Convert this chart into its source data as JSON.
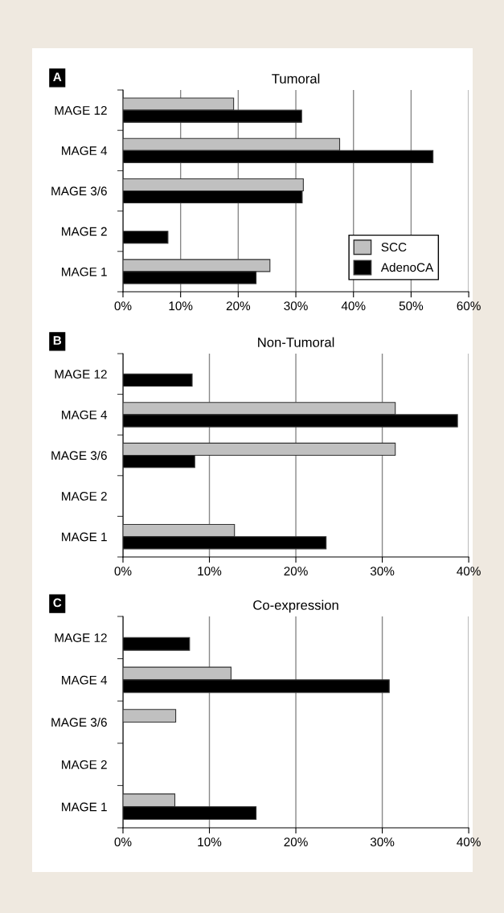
{
  "chart_data": [
    {
      "type": "bar",
      "orientation": "horizontal",
      "title": "Tumoral",
      "annotations": [
        "A"
      ],
      "categories": [
        "MAGE 12",
        "MAGE 4",
        "MAGE 3/6",
        "MAGE 2",
        "MAGE 1"
      ],
      "series": [
        {
          "name": "SCC",
          "color": "#c0c0c0",
          "values": [
            19.2,
            37.6,
            31.3,
            null,
            25.5
          ]
        },
        {
          "name": "AdenoCA",
          "color": "#000000",
          "values": [
            31.0,
            53.8,
            31.1,
            7.8,
            23.1
          ]
        }
      ],
      "xlim": [
        0,
        60
      ],
      "xticks": [
        {
          "value": 0,
          "label": "0%"
        },
        {
          "value": 10,
          "label": "10%"
        },
        {
          "value": 20,
          "label": "20%"
        },
        {
          "value": 30,
          "label": "30%"
        },
        {
          "value": 40,
          "label": "40%"
        },
        {
          "value": 50,
          "label": "50%"
        },
        {
          "value": 60,
          "label": "60%"
        }
      ],
      "grid": "x",
      "legend": "bottom right"
    },
    {
      "type": "bar",
      "orientation": "horizontal",
      "title": "Non-Tumoral",
      "annotations": [
        "B"
      ],
      "categories": [
        "MAGE 12",
        "MAGE 4",
        "MAGE 3/6",
        "MAGE 2",
        "MAGE 1"
      ],
      "series": [
        {
          "color": "#c0c0c0",
          "values": [
            null,
            31.5,
            31.5,
            null,
            12.9
          ]
        },
        {
          "color": "#000000",
          "values": [
            8.0,
            38.7,
            8.3,
            null,
            23.5
          ]
        }
      ],
      "xlim": [
        0,
        40
      ],
      "xticks": [
        {
          "value": 0,
          "label": "0%"
        },
        {
          "value": 10,
          "label": "10%"
        },
        {
          "value": 20,
          "label": "20%"
        },
        {
          "value": 30,
          "label": "30%"
        },
        {
          "value": 40,
          "label": "40%"
        }
      ],
      "grid": "x",
      "legend": false
    },
    {
      "type": "bar",
      "orientation": "horizontal",
      "title": "Co-expression",
      "annotations": [
        "C"
      ],
      "categories": [
        "MAGE 12",
        "MAGE 4",
        "MAGE 3/6",
        "MAGE 2",
        "MAGE 1"
      ],
      "series": [
        {
          "color": "#c0c0c0",
          "values": [
            null,
            12.5,
            6.1,
            null,
            6.0
          ]
        },
        {
          "color": "#000000",
          "values": [
            7.7,
            30.8,
            null,
            null,
            15.4
          ]
        }
      ],
      "xlim": [
        0,
        40
      ],
      "xticks": [
        {
          "value": 0,
          "label": "0%"
        },
        {
          "value": 10,
          "label": "10%"
        },
        {
          "value": 20,
          "label": "20%"
        },
        {
          "value": 30,
          "label": "30%"
        },
        {
          "value": 40,
          "label": "40%"
        }
      ],
      "grid": "x",
      "legend": false
    }
  ]
}
